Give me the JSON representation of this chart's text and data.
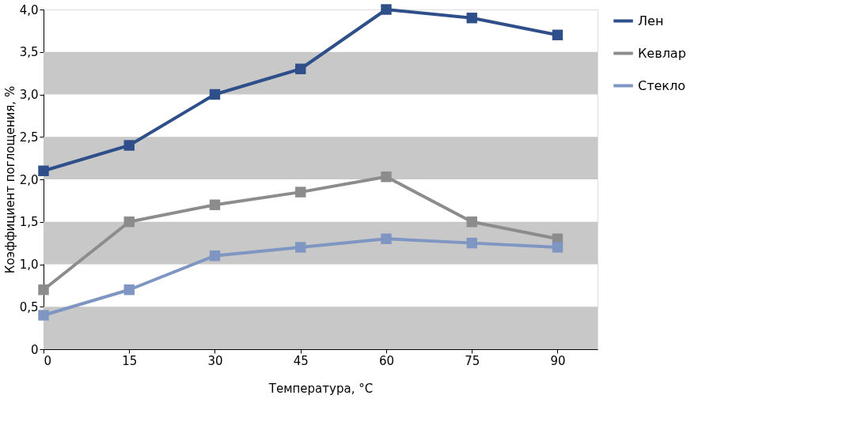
{
  "chart_data": {
    "type": "line",
    "xlabel": "Температура, °C",
    "ylabel": "Коэффициент поглощения, %",
    "x": [
      0,
      15,
      30,
      45,
      60,
      75,
      90
    ],
    "series": [
      {
        "name": "Лен",
        "color": "#2e4f8a",
        "values": [
          2.1,
          2.4,
          3.0,
          3.3,
          4.0,
          3.9,
          3.7
        ]
      },
      {
        "name": "Кевлар",
        "color": "#8c8c8c",
        "values": [
          0.7,
          1.5,
          1.7,
          1.85,
          2.03,
          1.5,
          1.3
        ]
      },
      {
        "name": "Стекло",
        "color": "#7f96c2",
        "values": [
          0.4,
          0.7,
          1.1,
          1.2,
          1.3,
          1.25,
          1.2
        ]
      }
    ],
    "xlim": [
      0,
      97
    ],
    "xticks": [
      0,
      15,
      30,
      45,
      60,
      75,
      90
    ],
    "ylim": [
      0,
      4.0
    ],
    "yticks": [
      0,
      {
        "value": 0.5,
        "label": "0,5"
      },
      {
        "value": 1.0,
        "label": "1,0"
      },
      {
        "value": 1.5,
        "label": "1,5"
      },
      {
        "value": 2.0,
        "label": "2,0"
      },
      {
        "value": 2.5,
        "label": "2,5"
      },
      {
        "value": 3.0,
        "label": "3,0"
      },
      {
        "value": 3.5,
        "label": "3,5"
      },
      {
        "value": 4.0,
        "label": "4,0"
      }
    ],
    "bands": [
      {
        "axis": "y",
        "from": 0,
        "to": 0.5,
        "color": "#c8c8c8"
      },
      {
        "axis": "y",
        "from": 1.0,
        "to": 1.5,
        "color": "#c8c8c8"
      },
      {
        "axis": "y",
        "from": 2.0,
        "to": 2.5,
        "color": "#c8c8c8"
      },
      {
        "axis": "y",
        "from": 3.0,
        "to": 3.5,
        "color": "#c8c8c8"
      }
    ],
    "grid": false,
    "legend": "right",
    "marker": "square",
    "line_style": "solid"
  }
}
